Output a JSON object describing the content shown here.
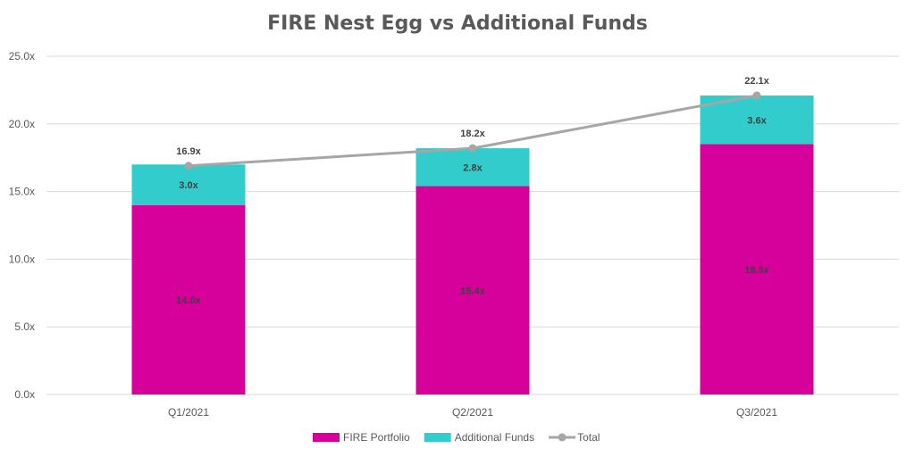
{
  "chart_data": {
    "type": "bar",
    "stacked": true,
    "title": "FIRE Nest Egg vs Additional Funds",
    "categories": [
      "Q1/2021",
      "Q2/2021",
      "Q3/2021"
    ],
    "ylim": [
      0,
      25
    ],
    "yticks": [
      0,
      5,
      10,
      15,
      20,
      25
    ],
    "ytick_labels": [
      "0.0x",
      "5.0x",
      "10.0x",
      "15.0x",
      "20.0x",
      "25.0x"
    ],
    "grid": true,
    "legend_position": "bottom",
    "series": [
      {
        "name": "FIRE Portfolio",
        "type": "bar",
        "color": "#D6009B",
        "values": [
          14.0,
          15.4,
          18.5
        ],
        "labels": [
          "14.0x",
          "15.4x",
          "18.5x"
        ]
      },
      {
        "name": "Additional Funds",
        "type": "bar",
        "color": "#33CCCC",
        "values": [
          3.0,
          2.8,
          3.6
        ],
        "labels": [
          "3.0x",
          "2.8x",
          "3.6x"
        ]
      },
      {
        "name": "Total",
        "type": "line",
        "color": "#A6A6A6",
        "values": [
          16.9,
          18.2,
          22.1
        ],
        "labels": [
          "16.9x",
          "18.2x",
          "22.1x"
        ]
      }
    ]
  }
}
